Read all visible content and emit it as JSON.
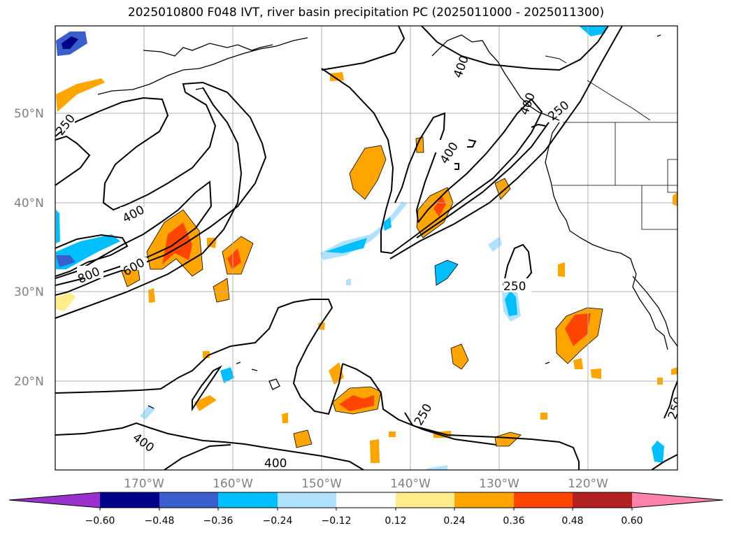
{
  "title": "2025010800 F048 IVT, river basin precipitation PC (2025011000 - 2025011300)",
  "map": {
    "lat_labels": [
      "50°N",
      "40°N",
      "30°N",
      "20°N"
    ],
    "lon_labels": [
      "170°W",
      "160°W",
      "150°W",
      "140°W",
      "130°W",
      "120°W"
    ],
    "contour_labels": [
      "250",
      "400",
      "600",
      "800",
      "400",
      "250",
      "250",
      "250",
      "400",
      "400",
      "400",
      "250",
      "400"
    ]
  },
  "colorbar": {
    "ticks": [
      "−0.60",
      "−0.48",
      "−0.36",
      "−0.24",
      "−0.12",
      "0.12",
      "0.24",
      "0.36",
      "0.48",
      "0.60"
    ],
    "colors": [
      "#9932cc",
      "#00008b",
      "#3a5fcd",
      "#00bfff",
      "#b0e2ff",
      "#ffffff",
      "#ffec8b",
      "#ffa500",
      "#ff4500",
      "#b22222",
      "#ff82ab"
    ]
  }
}
